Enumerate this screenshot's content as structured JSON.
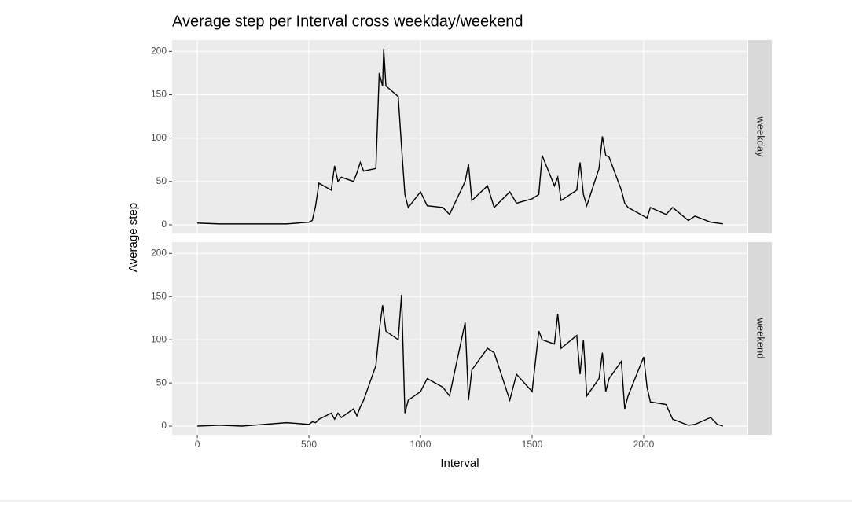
{
  "chart_data": {
    "type": "line",
    "title": "Average step per Interval cross weekday/weekend",
    "x_label": "Interval",
    "y_label": "Average step",
    "facet": true,
    "grid": true,
    "xlim": [
      -113,
      2465
    ],
    "ylim": [
      -10,
      213
    ],
    "xticks": [
      0,
      500,
      1000,
      1500,
      2000
    ],
    "yticks": [
      0,
      50,
      100,
      150,
      200
    ],
    "x": [
      0,
      100,
      200,
      300,
      400,
      500,
      515,
      530,
      545,
      600,
      615,
      630,
      645,
      700,
      715,
      730,
      745,
      800,
      815,
      830,
      835,
      845,
      900,
      915,
      930,
      945,
      1000,
      1030,
      1100,
      1130,
      1200,
      1215,
      1230,
      1300,
      1330,
      1400,
      1430,
      1500,
      1530,
      1545,
      1600,
      1615,
      1630,
      1700,
      1715,
      1730,
      1745,
      1800,
      1815,
      1830,
      1845,
      1900,
      1915,
      1930,
      2000,
      2015,
      2030,
      2100,
      2130,
      2200,
      2230,
      2300,
      2330,
      2355
    ],
    "series": [
      {
        "name": "weekday",
        "color": "#000000",
        "values": [
          2,
          1,
          1,
          1,
          1,
          3,
          5,
          22,
          48,
          40,
          68,
          50,
          55,
          50,
          60,
          72,
          62,
          65,
          175,
          160,
          203,
          160,
          148,
          90,
          35,
          20,
          38,
          22,
          20,
          12,
          50,
          70,
          28,
          45,
          20,
          38,
          25,
          30,
          35,
          80,
          45,
          55,
          28,
          40,
          72,
          35,
          22,
          65,
          102,
          80,
          78,
          40,
          25,
          20,
          10,
          8,
          20,
          12,
          20,
          5,
          10,
          3,
          2,
          1
        ]
      },
      {
        "name": "weekend",
        "color": "#000000",
        "values": [
          0,
          1,
          0,
          2,
          4,
          2,
          5,
          4,
          8,
          15,
          8,
          15,
          10,
          20,
          12,
          22,
          30,
          70,
          110,
          140,
          130,
          110,
          100,
          152,
          15,
          30,
          40,
          55,
          45,
          35,
          120,
          30,
          65,
          90,
          85,
          30,
          60,
          40,
          110,
          100,
          95,
          130,
          90,
          105,
          60,
          100,
          35,
          55,
          85,
          40,
          55,
          75,
          20,
          35,
          80,
          45,
          28,
          25,
          8,
          1,
          2,
          10,
          2,
          0
        ]
      }
    ]
  }
}
